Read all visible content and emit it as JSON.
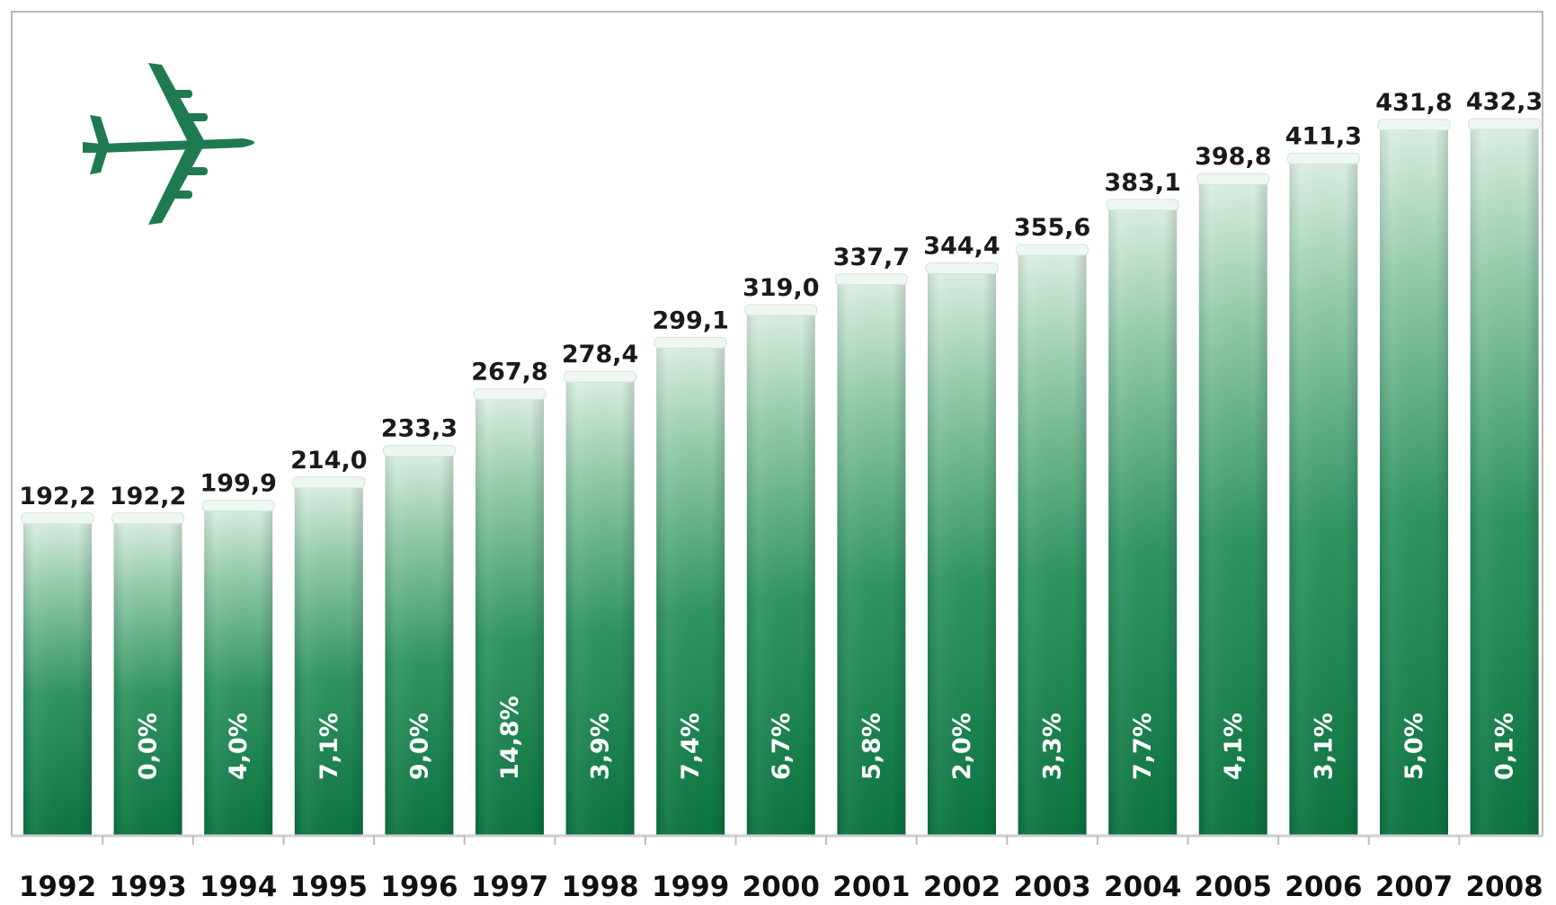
{
  "chart_data": {
    "type": "bar",
    "categories": [
      "1992",
      "1993",
      "1994",
      "1995",
      "1996",
      "1997",
      "1998",
      "1999",
      "2000",
      "2001",
      "2002",
      "2003",
      "2004",
      "2005",
      "2006",
      "2007",
      "2008"
    ],
    "values": [
      192.2,
      192.2,
      199.9,
      214.0,
      233.3,
      267.8,
      278.4,
      299.1,
      319.0,
      337.7,
      344.4,
      355.6,
      383.1,
      398.8,
      411.3,
      431.8,
      432.3
    ],
    "value_labels": [
      "192,2",
      "192,2",
      "199,9",
      "214,0",
      "233,3",
      "267,8",
      "278,4",
      "299,1",
      "319,0",
      "337,7",
      "344,4",
      "355,6",
      "383,1",
      "398,8",
      "411,3",
      "431,8",
      "432,3"
    ],
    "growth_labels": [
      "",
      "0,0%",
      "4,0%",
      "7,1%",
      "9,0%",
      "14,8%",
      "3,9%",
      "7,4%",
      "6,7%",
      "5,8%",
      "2,0%",
      "3,3%",
      "7,7%",
      "4,1%",
      "3,1%",
      "5,0%",
      "0,1%"
    ],
    "title": "",
    "xlabel": "",
    "ylabel": "",
    "ylim": [
      0,
      432.3
    ],
    "grid": false,
    "legend": "none",
    "icon": "airplane-icon",
    "colors": {
      "bar_dark": "#0e7a45",
      "bar_mid": "#2f9462",
      "bar_light": "#d8ece0",
      "airplane": "#1f7a52"
    }
  }
}
